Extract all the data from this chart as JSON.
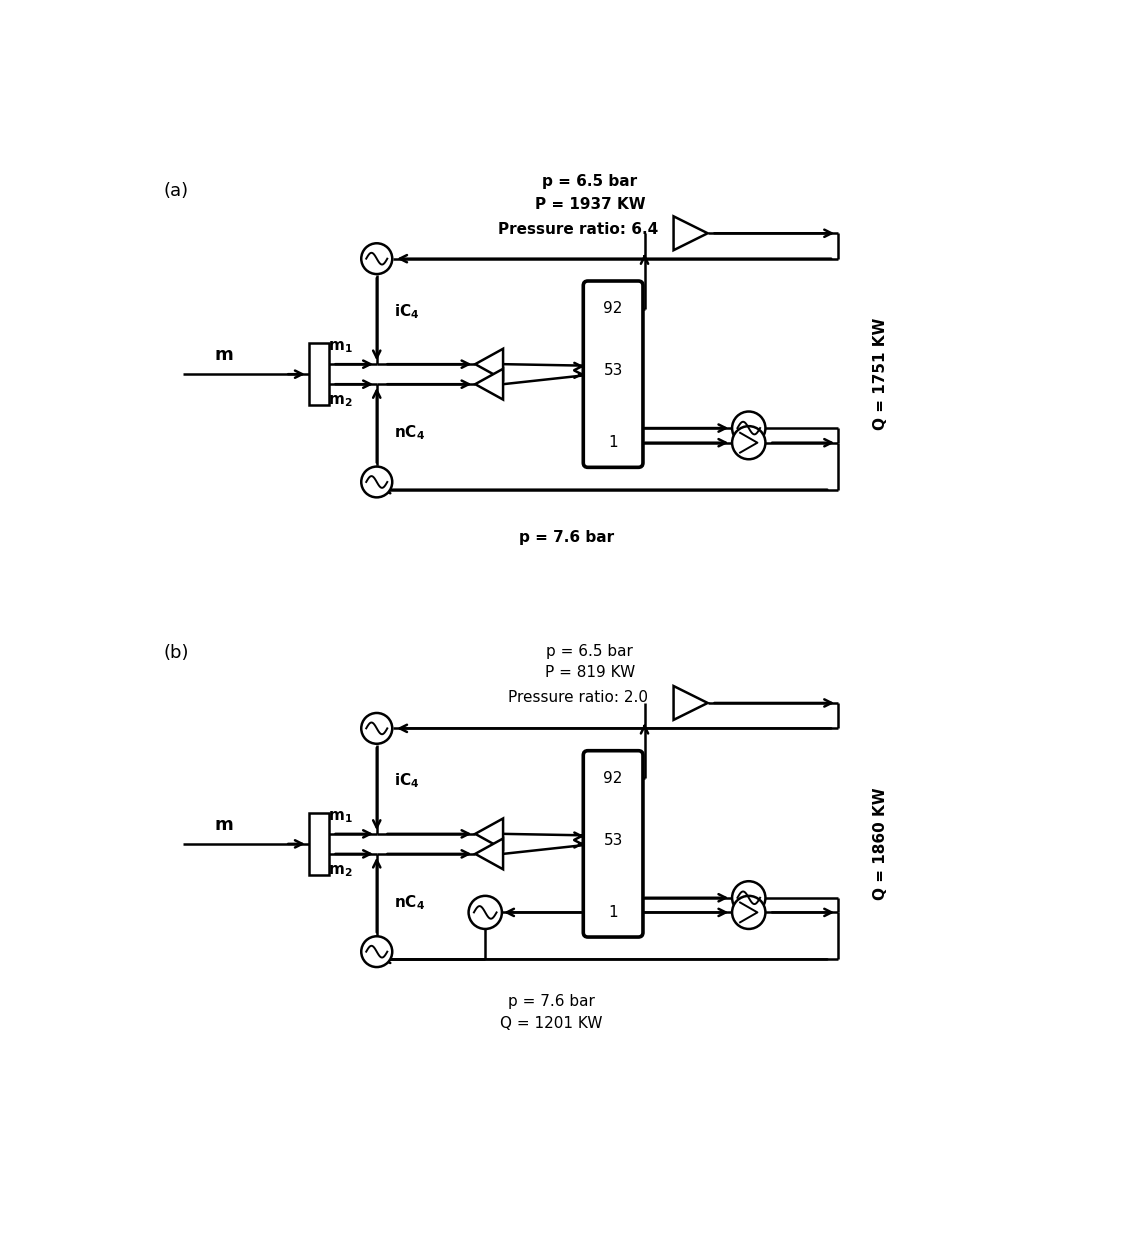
{
  "fig_width": 11.23,
  "fig_height": 12.38,
  "bg_color": "#ffffff",
  "label_a": "(a)",
  "label_b": "(b)",
  "case_a": {
    "top_text_line1": "p = 6.5 bar",
    "top_text_line2": "P = 1937 KW",
    "pressure_ratio_text": "Pressure ratio: 6.4",
    "bottom_text": "p = 7.6 bar",
    "q_text": "Q = 1751 KW",
    "tray_top": "92",
    "tray_mid": "53",
    "tray_bot": "1"
  },
  "case_b": {
    "top_text_line1": "p = 6.5 bar",
    "top_text_line2": "P = 819 KW",
    "pressure_ratio_text": "Pressure ratio: 2.0",
    "bottom_text_line1": "p = 7.6 bar",
    "bottom_text_line2": "Q = 1201 KW",
    "q_text": "Q = 1860 KW",
    "tray_top": "92",
    "tray_mid": "53",
    "tray_bot": "1"
  }
}
